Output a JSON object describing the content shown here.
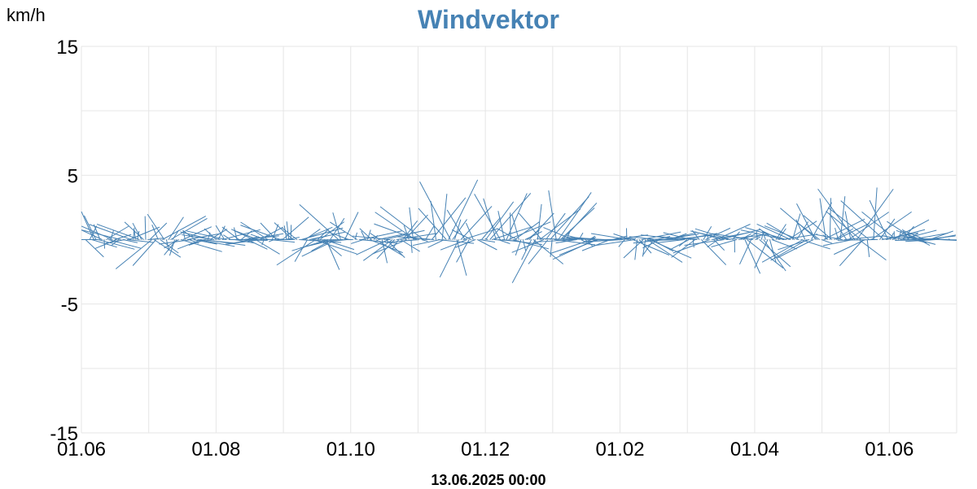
{
  "header": {
    "unit_label": "km/h",
    "title": "Windvektor"
  },
  "footer": {
    "timestamp": "13.06.2025 00:00"
  },
  "chart_data": {
    "type": "line",
    "title": "Windvektor",
    "ylabel": "km/h",
    "ylim": [
      -15,
      15
    ],
    "y_ticks": [
      "15",
      "5",
      "-5",
      "-15"
    ],
    "y_tick_values": [
      15,
      5,
      -5,
      -15
    ],
    "x_ticks": [
      "01.06",
      "01.08",
      "01.10",
      "01.12",
      "01.02",
      "01.04",
      "01.06"
    ],
    "x_tick_positions": [
      0,
      2,
      4,
      6,
      8,
      10,
      12
    ],
    "xlim": [
      0,
      13
    ],
    "grid": true,
    "series_color": "#4682b4",
    "grid_color": "#e6e6e6",
    "series": [
      {
        "values": [
          [
            0.0,
            -1.5,
            0.3,
            -1.4,
            1.0,
            0.2,
            1.0,
            -2.5,
            1.8,
            -0.7,
            2.1,
            0.3,
            2.6,
            -1.3,
            3.1,
            0.8,
            3.5,
            -3.6,
            4.0,
            0.1,
            4.4,
            -2.2,
            4.8,
            -1.6,
            5.2,
            0.6,
            5.6,
            -3.3,
            6.0,
            0.2,
            6.4,
            -0.9,
            6.8,
            -4.0,
            7.2,
            0.5,
            7.6,
            -1.8,
            8.0,
            -0.5,
            8.4,
            -2.4,
            8.8,
            0.3,
            9.2,
            -2.0,
            9.6,
            -0.4,
            10.0,
            -5.4,
            10.4,
            0.9,
            10.8,
            -2.7,
            11.2,
            1.7,
            11.6,
            -2.2,
            12.0,
            1.9,
            12.4,
            -0.6,
            12.8,
            0.0
          ],
          [
            0.1,
            2.8,
            0.5,
            1.2,
            1.3,
            2.3,
            1.7,
            0.9,
            2.1,
            1.6,
            2.5,
            0.7,
            3.0,
            2.1,
            3.4,
            0.9,
            3.8,
            3.0,
            4.2,
            1.1,
            4.6,
            0.6,
            5.0,
            3.4,
            5.4,
            6.0,
            5.8,
            1.7,
            6.2,
            4.6,
            6.6,
            2.1,
            7.0,
            5.1,
            7.4,
            0.6,
            7.8,
            0.1,
            8.2,
            1.3,
            8.6,
            0.5,
            9.0,
            0.7,
            9.4,
            1.3,
            9.8,
            0.6,
            10.2,
            1.0,
            10.6,
            2.3,
            11.0,
            3.4,
            11.4,
            3.9,
            11.8,
            5.1,
            12.2,
            2.1,
            12.6,
            0.7,
            13.0,
            0.0
          ]
        ]
      }
    ]
  }
}
